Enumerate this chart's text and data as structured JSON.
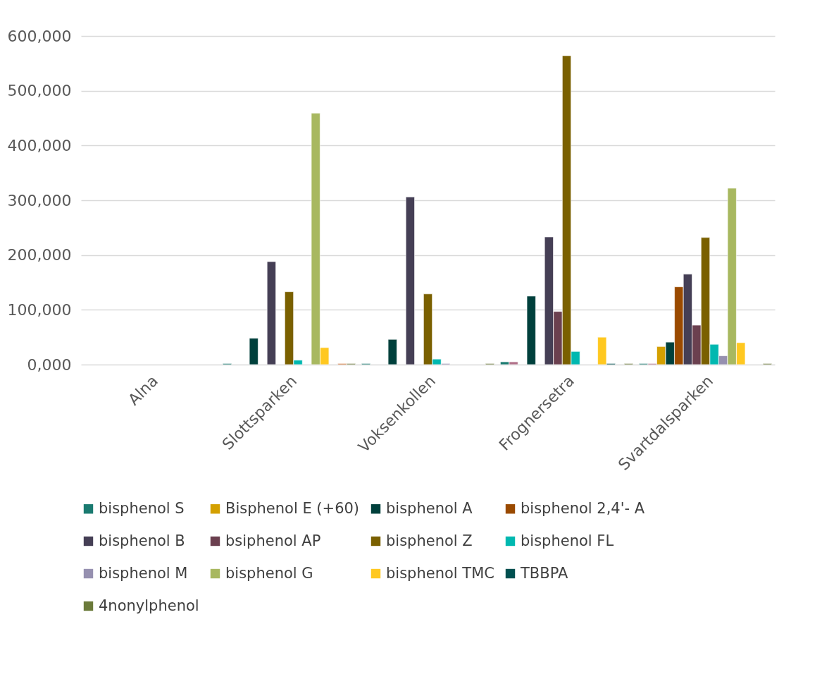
{
  "chart_data": {
    "type": "bar",
    "categories": [
      "Alna",
      "Slottsparken",
      "Voksenkollen",
      "Frognersetra",
      "Svartdalsparken"
    ],
    "series": [
      {
        "name": "bisphenol S",
        "color": "#1a7a70",
        "values": [
          null,
          2,
          2,
          5,
          2
        ]
      },
      {
        "color": "#b07088",
        "values": [
          null,
          null,
          null,
          5,
          2
        ]
      },
      {
        "name": "Bisphenol E (+60)",
        "color": "#d4a000",
        "values": [
          null,
          null,
          null,
          null,
          33
        ]
      },
      {
        "name": "bisphenol A",
        "color": "#00403c",
        "values": [
          null,
          48,
          46,
          125,
          41
        ]
      },
      {
        "name": "bisphenol 2,4'- A",
        "color": "#9a4a00",
        "values": [
          null,
          null,
          null,
          null,
          142
        ]
      },
      {
        "name": "bisphenol B",
        "color": "#453f55",
        "values": [
          null,
          188,
          306,
          233,
          165
        ]
      },
      {
        "name": "bsiphenol AP",
        "color": "#6b404f",
        "values": [
          null,
          null,
          null,
          97,
          72
        ]
      },
      {
        "name": "bisphenol Z",
        "color": "#7a6000",
        "values": [
          null,
          133,
          129,
          564,
          232
        ]
      },
      {
        "name": "bisphenol FL",
        "color": "#00b8b0",
        "values": [
          null,
          8,
          10,
          24,
          37
        ]
      },
      {
        "name": "bisphenol M",
        "color": "#9690b0",
        "values": [
          null,
          null,
          2,
          null,
          16
        ]
      },
      {
        "name": "bisphenol G",
        "color": "#a8b860",
        "values": [
          null,
          459,
          null,
          null,
          322
        ]
      },
      {
        "name": "bisphenol TMC",
        "color": "#ffc820",
        "values": [
          null,
          31,
          null,
          50,
          40
        ]
      },
      {
        "name": "TBBPA",
        "color": "#005050",
        "values": [
          null,
          null,
          null,
          2,
          null
        ]
      },
      {
        "color": "#d07030",
        "values": [
          null,
          2,
          null,
          null,
          null
        ]
      },
      {
        "name": "4nonylphenol",
        "color": "#6b7a3a",
        "values": [
          null,
          2,
          2,
          2,
          2
        ]
      }
    ],
    "ylim": [
      0,
      600
    ],
    "yticks": [
      {
        "value": 0,
        "label": "0,000"
      },
      {
        "value": 100,
        "label": "100,000"
      },
      {
        "value": 200,
        "label": "200,000"
      },
      {
        "value": 300,
        "label": "300,000"
      },
      {
        "value": 400,
        "label": "400,000"
      },
      {
        "value": 500,
        "label": "500,000"
      },
      {
        "value": 600,
        "label": "600,000"
      }
    ],
    "grid": "y",
    "legend": "bottom"
  }
}
